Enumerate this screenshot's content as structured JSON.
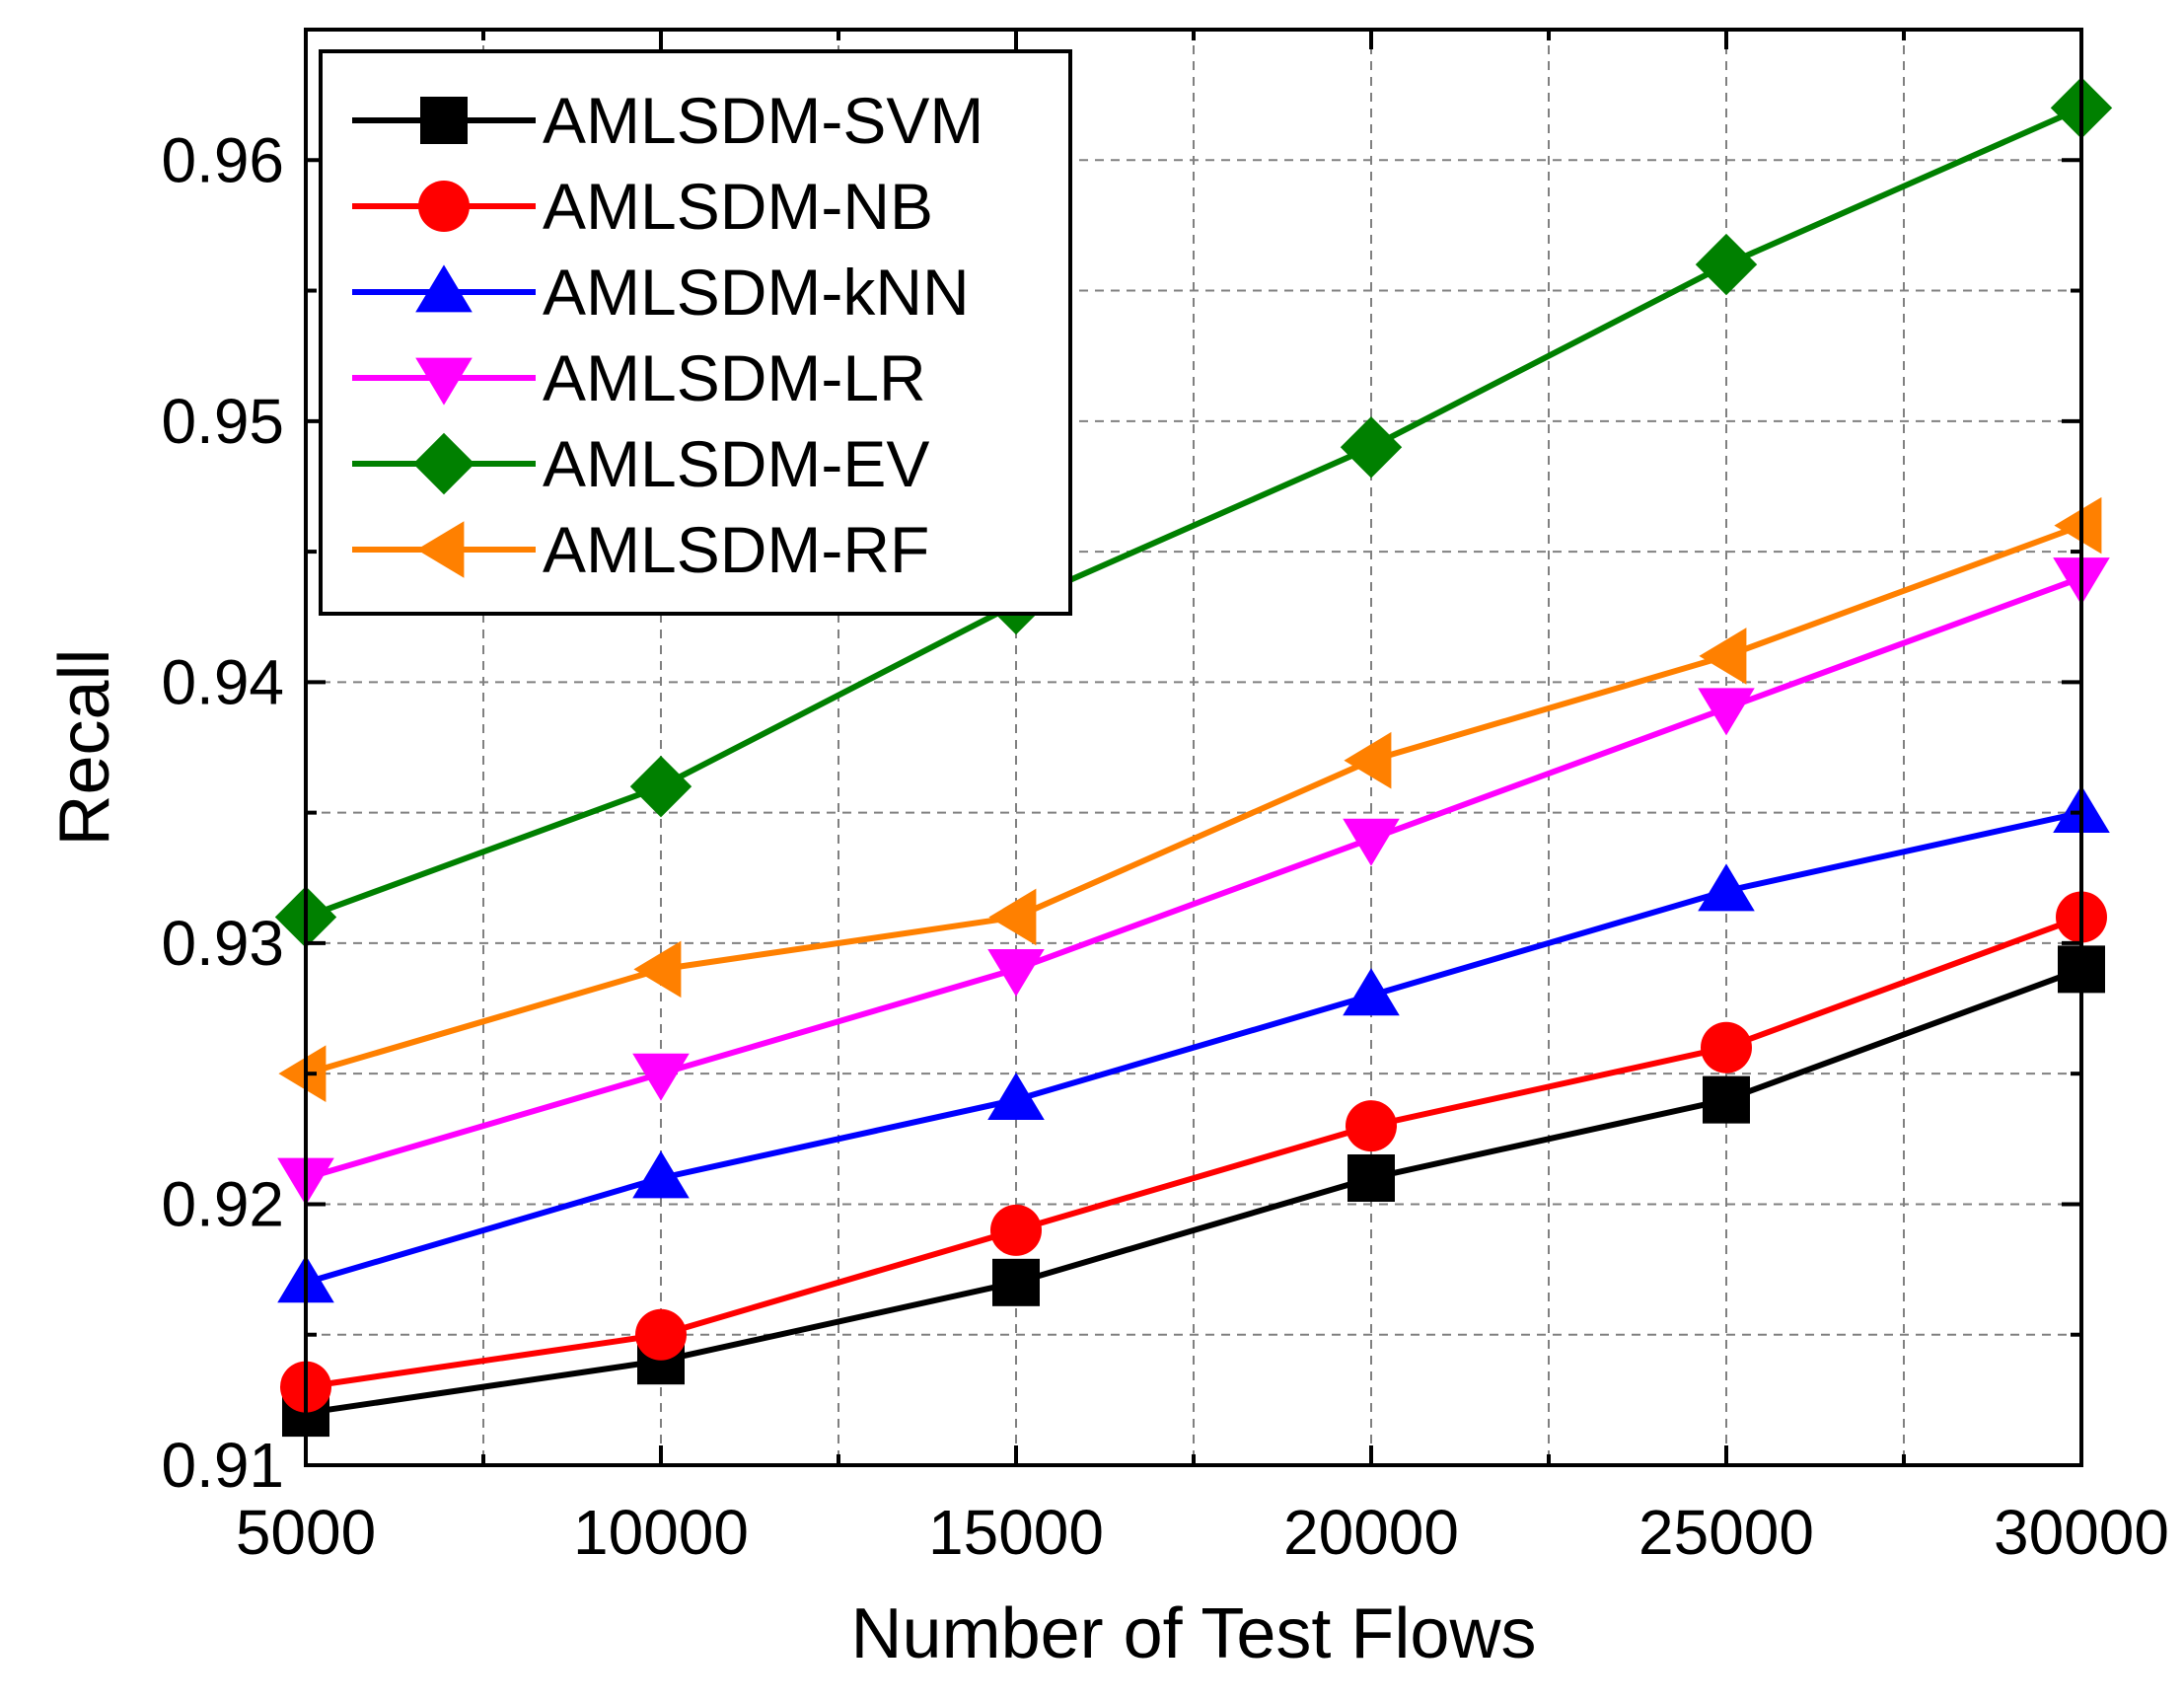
{
  "chart_data": {
    "type": "line",
    "title": "",
    "xlabel": "Number of Test Flows",
    "ylabel": "Recall",
    "x": [
      5000,
      10000,
      15000,
      20000,
      25000,
      30000
    ],
    "xlim": [
      5000,
      30000
    ],
    "ylim": [
      0.91,
      0.965
    ],
    "xticks": [
      5000,
      10000,
      15000,
      20000,
      25000,
      30000
    ],
    "xtick_labels": [
      "5000",
      "10000",
      "15000",
      "20000",
      "25000",
      "30000"
    ],
    "yticks": [
      0.91,
      0.92,
      0.93,
      0.94,
      0.95,
      0.96
    ],
    "ytick_labels": [
      "0.91",
      "0.92",
      "0.93",
      "0.94",
      "0.95",
      "0.96"
    ],
    "grid": true,
    "legend_position": "top-left",
    "series": [
      {
        "name": "AMLSDM-SVM",
        "color": "#000000",
        "marker": "square",
        "values": [
          0.912,
          0.914,
          0.917,
          0.921,
          0.924,
          0.929
        ]
      },
      {
        "name": "AMLSDM-NB",
        "color": "#ff0000",
        "marker": "circle",
        "values": [
          0.913,
          0.915,
          0.919,
          0.923,
          0.926,
          0.931
        ]
      },
      {
        "name": "AMLSDM-kNN",
        "color": "#0000ff",
        "marker": "triangle-up",
        "values": [
          0.917,
          0.921,
          0.924,
          0.928,
          0.932,
          0.935
        ]
      },
      {
        "name": "AMLSDM-LR",
        "color": "#ff00ff",
        "marker": "triangle-down",
        "values": [
          0.921,
          0.925,
          0.929,
          0.934,
          0.939,
          0.944
        ]
      },
      {
        "name": "AMLSDM-EV",
        "color": "#008000",
        "marker": "diamond",
        "values": [
          0.931,
          0.936,
          0.943,
          0.949,
          0.956,
          0.962
        ]
      },
      {
        "name": "AMLSDM-RF",
        "color": "#ff8000",
        "marker": "triangle-left",
        "values": [
          0.925,
          0.929,
          0.931,
          0.937,
          0.941,
          0.946
        ]
      }
    ]
  }
}
